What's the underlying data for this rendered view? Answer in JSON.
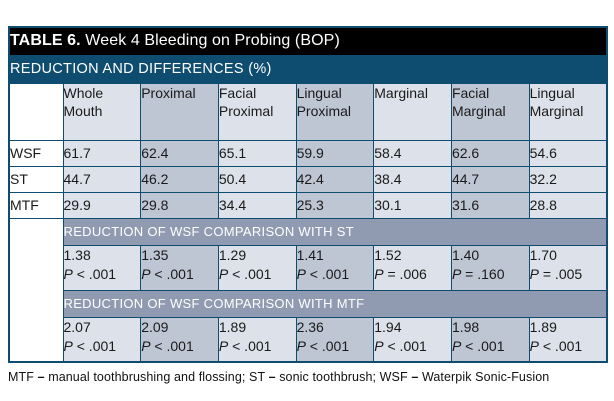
{
  "table": {
    "title_bold": "TABLE 6.",
    "title_rest": " Week 4 Bleeding on Probing (BOP)",
    "subtitle": "REDUCTION AND DIFFERENCES (%)",
    "columns": [
      "Whole Mouth",
      "Proximal",
      "Facial Proximal",
      "Lingual Proximal",
      "Marginal",
      "Facial Marginal",
      "Lingual Marginal"
    ],
    "rows": [
      {
        "label": "WSF",
        "values": [
          "61.7",
          "62.4",
          "65.1",
          "59.9",
          "58.4",
          "62.6",
          "54.6"
        ]
      },
      {
        "label": "ST",
        "values": [
          "44.7",
          "46.2",
          "50.4",
          "42.4",
          "38.4",
          "44.7",
          "32.2"
        ]
      },
      {
        "label": "MTF",
        "values": [
          "29.9",
          "29.8",
          "34.4",
          "25.3",
          "30.1",
          "31.6",
          "28.8"
        ]
      }
    ],
    "sections": [
      {
        "header": "REDUCTION OF WSF COMPARISON WITH ST",
        "values": [
          "1.38",
          "1.35",
          "1.29",
          "1.41",
          "1.52",
          "1.40",
          "1.70"
        ],
        "pvalues": [
          "P < .001",
          "P < .001",
          "P < .001",
          "P < .001",
          "P = .006",
          "P = .160",
          "P = .005"
        ]
      },
      {
        "header": "REDUCTION OF WSF COMPARISON WITH MTF",
        "values": [
          "2.07",
          "2.09",
          "1.89",
          "2.36",
          "1.94",
          "1.98",
          "1.89"
        ],
        "pvalues": [
          "P < .001",
          "P < .001",
          "P < .001",
          "P < .001",
          "P < .001",
          "P < .001",
          "P < .001"
        ]
      }
    ]
  },
  "footnote_parts": [
    {
      "text": "MTF ",
      "bold": false
    },
    {
      "text": "– ",
      "bold": true
    },
    {
      "text": "manual toothbrushing and flossing; ST ",
      "bold": false
    },
    {
      "text": "– ",
      "bold": true
    },
    {
      "text": "sonic toothbrush; WSF ",
      "bold": false
    },
    {
      "text": "– ",
      "bold": true
    },
    {
      "text": "Waterpik Sonic-Fusion",
      "bold": false
    }
  ],
  "colors": {
    "title_bar_bg": "#000000",
    "subtitle_bar_bg": "#0e4c70",
    "grid_border": "#0e4c70",
    "section_header_bg": "#909bb2",
    "column_light": "#dde1e9",
    "column_dark": "#bec5d3",
    "label_cell_bg": "#ffffff"
  }
}
